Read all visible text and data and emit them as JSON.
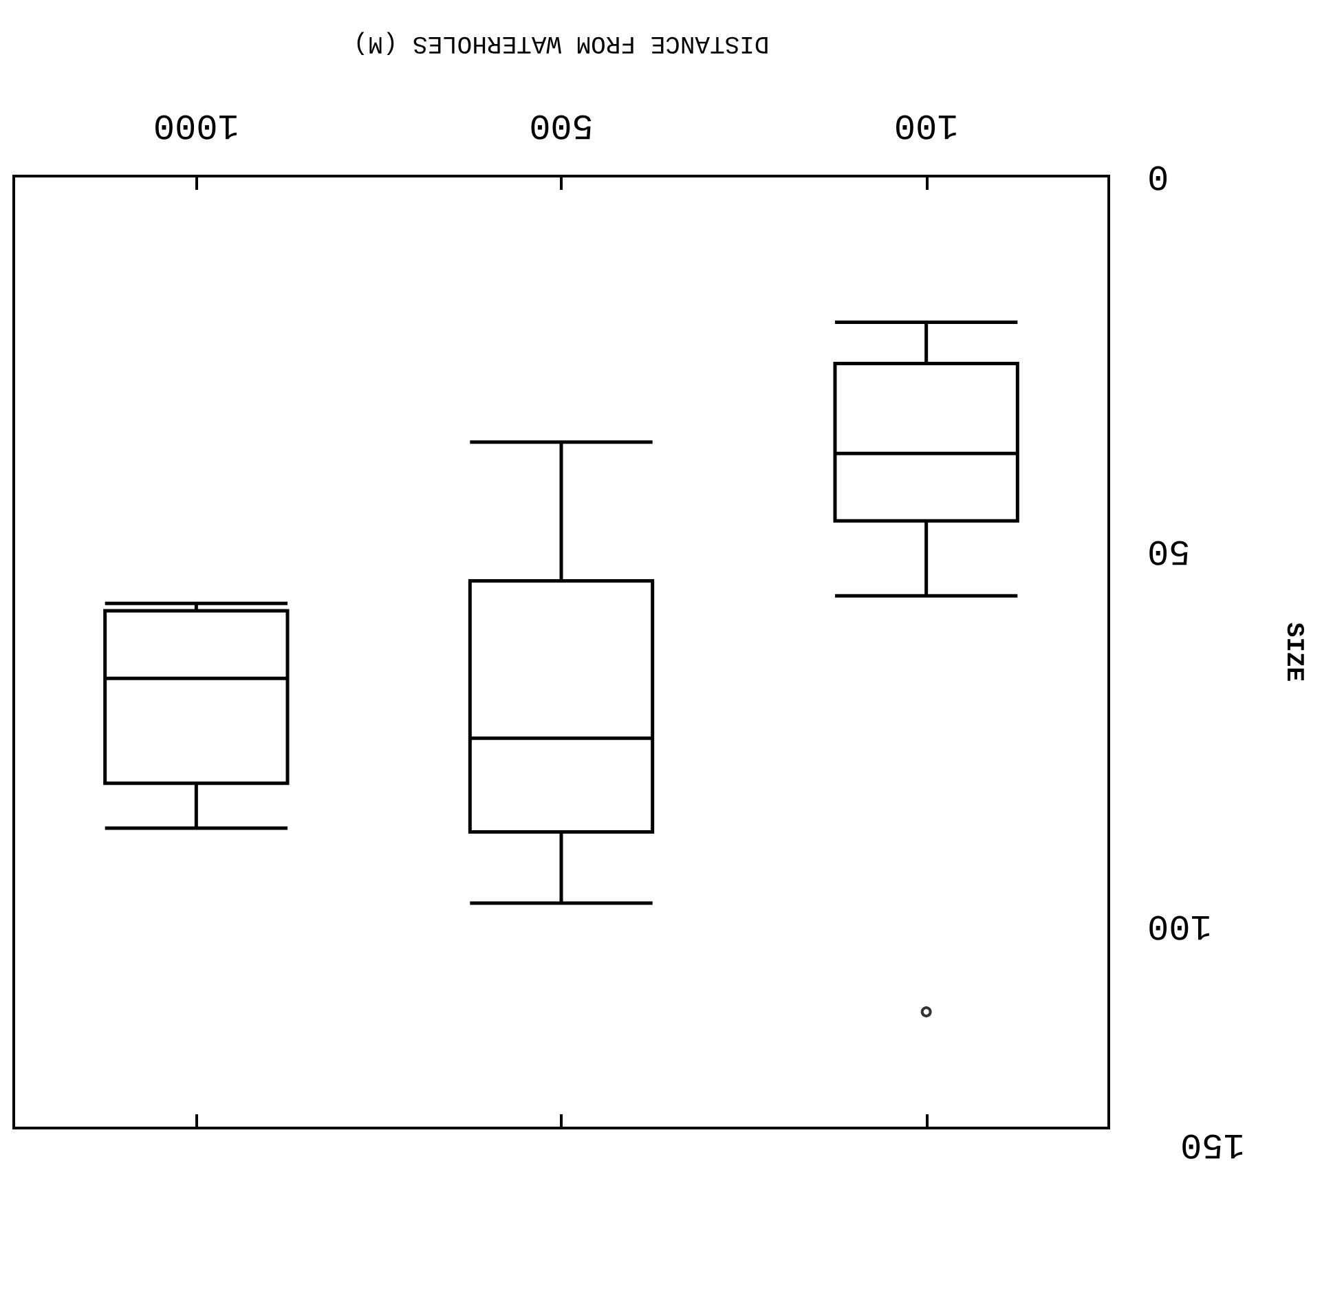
{
  "chart_data": {
    "type": "box",
    "xlabel": "DISTANCE FROM WATERHOLES (M)",
    "ylabel": "SIZE",
    "categories": [
      "1000",
      "500",
      "100"
    ],
    "boxes": [
      {
        "low": 57,
        "q1": 58,
        "median": 67,
        "q3": 81,
        "high": 87
      },
      {
        "low": 35.5,
        "q1": 54,
        "median": 75,
        "q3": 87.5,
        "high": 97
      },
      {
        "low": 19.5,
        "q1": 25,
        "median": 37,
        "q3": 46,
        "high": 56,
        "outliers": [
          111.5
        ]
      }
    ],
    "ylim": [
      127,
      0
    ],
    "yticks": [
      0,
      50,
      100
    ],
    "annotations": [
      "150"
    ],
    "grid": false
  }
}
